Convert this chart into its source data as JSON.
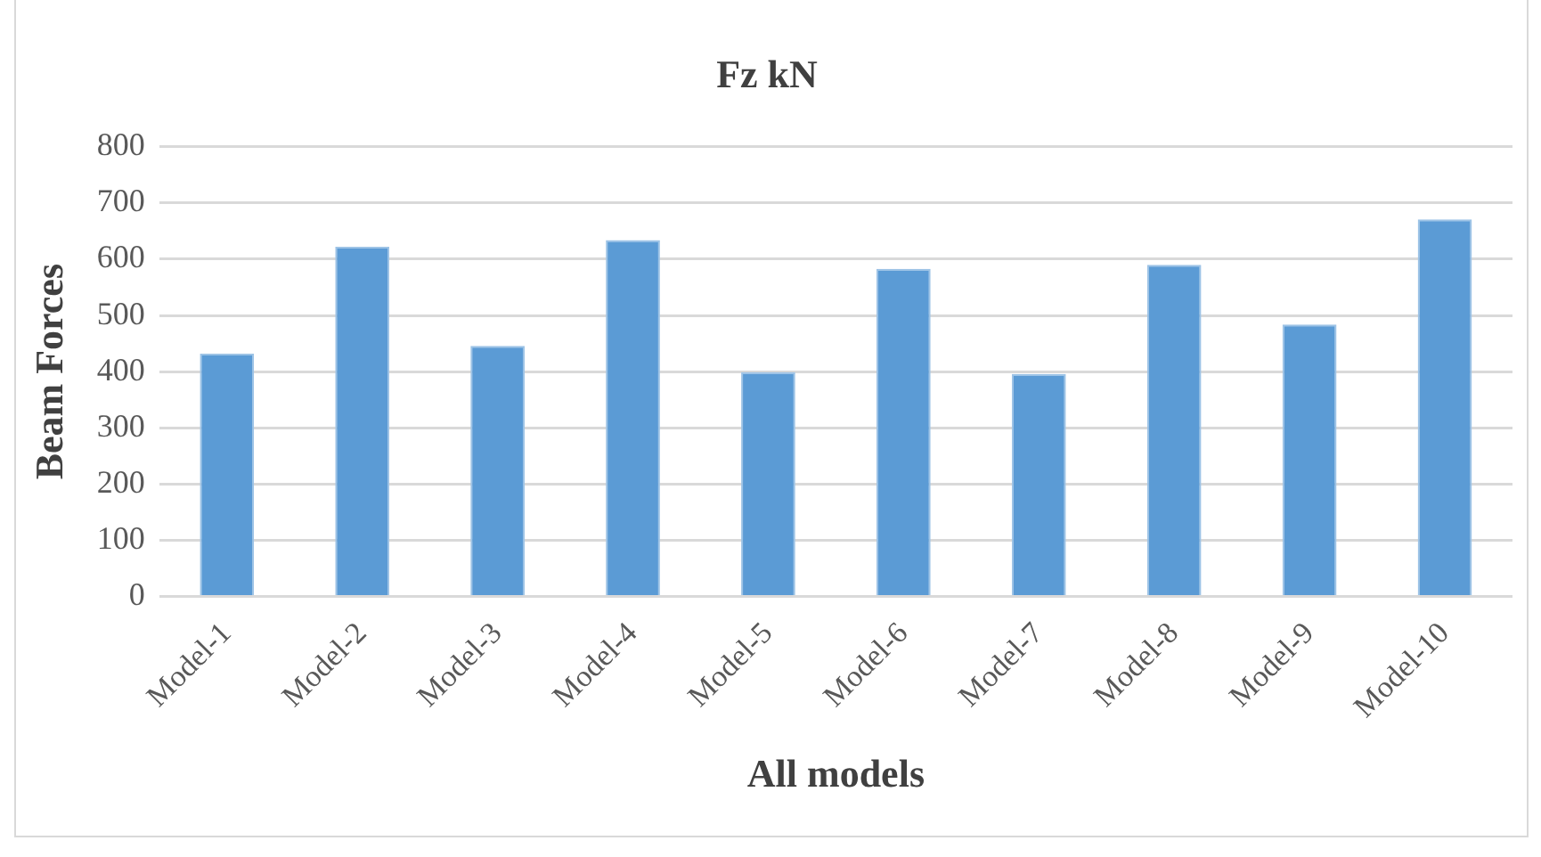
{
  "chart_data": {
    "type": "bar",
    "title": "Fz kN",
    "xlabel": "All models",
    "ylabel": "Beam Forces",
    "categories": [
      "Model-1",
      "Model-2",
      "Model-3",
      "Model-4",
      "Model-5",
      "Model-6",
      "Model-7",
      "Model-8",
      "Model-9",
      "Model-10"
    ],
    "values": [
      432,
      622,
      446,
      634,
      399,
      583,
      396,
      590,
      484,
      671
    ],
    "color": "#5b9bd5",
    "ylim": [
      0,
      800
    ],
    "yticks": [
      0,
      100,
      200,
      300,
      400,
      500,
      600,
      700,
      800
    ],
    "grid": "y"
  }
}
